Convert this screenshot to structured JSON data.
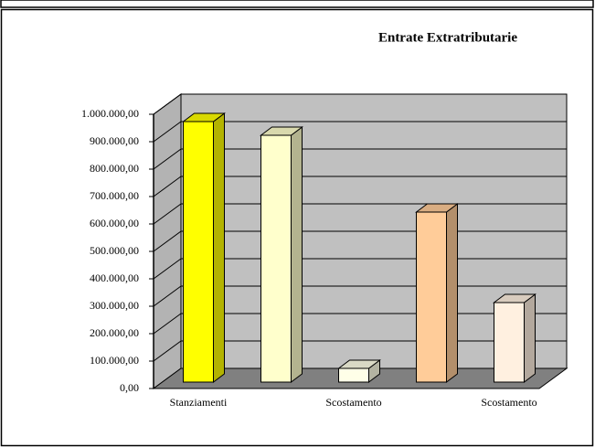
{
  "chart_data": {
    "type": "bar3d",
    "title": "Entrate Extratributarie",
    "categories": [
      "Stanziamenti",
      null,
      "Scostamento",
      null,
      "Scostamento"
    ],
    "values": [
      950000,
      900000,
      50000,
      620000,
      290000
    ],
    "colors": [
      "#ffff00",
      "#ffffcc",
      "#ffffe8",
      "#ffcc99",
      "#fff0e0"
    ],
    "ylim": [
      0,
      1000000
    ],
    "yticks": [
      {
        "value": 0,
        "label": "0,00"
      },
      {
        "value": 100000,
        "label": "100.000,00"
      },
      {
        "value": 200000,
        "label": "200.000,00"
      },
      {
        "value": 300000,
        "label": "300.000,00"
      },
      {
        "value": 400000,
        "label": "400.000,00"
      },
      {
        "value": 500000,
        "label": "500.000,00"
      },
      {
        "value": 600000,
        "label": "600.000,00"
      },
      {
        "value": 700000,
        "label": "700.000,00"
      },
      {
        "value": 800000,
        "label": "800.000,00"
      },
      {
        "value": 900000,
        "label": "900.000,00"
      },
      {
        "value": 1000000,
        "label": "1.000.000,00"
      }
    ],
    "grid": true
  }
}
